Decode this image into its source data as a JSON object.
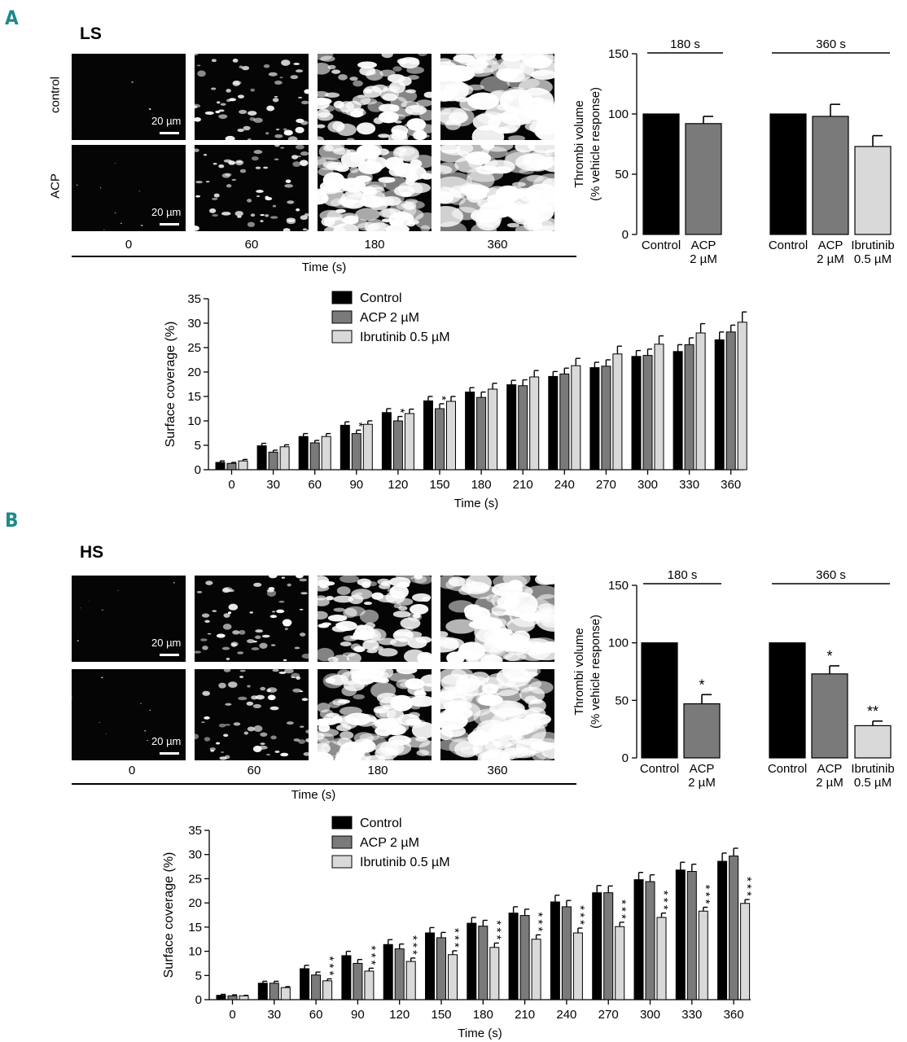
{
  "panels": [
    {
      "letter": "A",
      "condition": "LS",
      "row_labels": [
        "control",
        "ACP"
      ],
      "scale_label": "20 µm",
      "times": [
        "0",
        "60",
        "180",
        "360"
      ],
      "time_axis_label": "Time (s)"
    },
    {
      "letter": "B",
      "condition": "HS",
      "row_labels": [
        "",
        ""
      ],
      "scale_label": "20 µm",
      "times": [
        "0",
        "60",
        "180",
        "360"
      ],
      "time_axis_label": "Time (s)"
    }
  ],
  "colors": {
    "control": "#000000",
    "acp": "#7a7a7a",
    "ibrutinib": "#d9d9d9"
  },
  "chart_data": [
    {
      "type": "bar",
      "panel": "A",
      "ylabel": "Thrombi volume (% vehicle response)",
      "ylabel_lines": [
        "Thrombi volume",
        "(% vehicle response)"
      ],
      "ylim": [
        0,
        150
      ],
      "yticks": [
        0,
        50,
        100,
        150
      ],
      "groups": [
        {
          "label": "180 s",
          "bars": [
            {
              "label_lines": [
                "Control"
              ],
              "value": 100,
              "err": 0,
              "color": "control",
              "sig": ""
            },
            {
              "label_lines": [
                "ACP",
                "2 µM"
              ],
              "value": 92,
              "err": 6,
              "color": "acp",
              "sig": ""
            }
          ]
        },
        {
          "label": "360 s",
          "bars": [
            {
              "label_lines": [
                "Control"
              ],
              "value": 100,
              "err": 0,
              "color": "control",
              "sig": ""
            },
            {
              "label_lines": [
                "ACP",
                "2 µM"
              ],
              "value": 98,
              "err": 10,
              "color": "acp",
              "sig": ""
            },
            {
              "label_lines": [
                "Ibrutinib",
                "0.5 µM"
              ],
              "value": 73,
              "err": 9,
              "color": "ibrutinib",
              "sig": ""
            }
          ]
        }
      ]
    },
    {
      "type": "bar",
      "panel": "A",
      "xlabel": "Time (s)",
      "ylabel": "Surface coverage (%)",
      "ylim": [
        0,
        35
      ],
      "yticks": [
        0,
        5,
        10,
        15,
        20,
        25,
        30,
        35
      ],
      "categories": [
        "0",
        "30",
        "60",
        "90",
        "120",
        "150",
        "180",
        "210",
        "240",
        "270",
        "300",
        "330",
        "360"
      ],
      "series": [
        {
          "name": "Control",
          "color": "control",
          "values": [
            1.5,
            4.9,
            6.8,
            9.1,
            11.7,
            14.1,
            15.9,
            17.4,
            19.1,
            20.9,
            23.2,
            24.2,
            26.6
          ],
          "errors": [
            0.3,
            0.5,
            0.6,
            0.7,
            0.8,
            0.9,
            0.9,
            0.9,
            1.0,
            1.1,
            1.2,
            1.4,
            1.6
          ],
          "sig": [
            "",
            "",
            "",
            "",
            "",
            "",
            "",
            "",
            "",
            "",
            "",
            "",
            ""
          ]
        },
        {
          "name": "ACP 2 µM",
          "color": "acp",
          "values": [
            1.3,
            3.6,
            5.5,
            7.4,
            10.0,
            12.5,
            14.8,
            17.2,
            19.6,
            21.2,
            23.4,
            25.6,
            28.2
          ],
          "errors": [
            0.2,
            0.4,
            0.5,
            0.7,
            0.9,
            1.0,
            1.1,
            1.2,
            1.2,
            1.3,
            1.3,
            1.4,
            1.4
          ],
          "sig": [
            "",
            "",
            "",
            "*",
            "*",
            "*",
            "",
            "",
            "",
            "",
            "",
            "",
            ""
          ]
        },
        {
          "name": "Ibrutinib 0.5 µM",
          "color": "ibrutinib",
          "values": [
            1.8,
            4.7,
            6.8,
            9.3,
            11.5,
            14.0,
            16.5,
            19.0,
            21.3,
            23.7,
            25.7,
            28.0,
            30.2
          ],
          "errors": [
            0.3,
            0.4,
            0.6,
            0.7,
            0.9,
            1.0,
            1.2,
            1.3,
            1.5,
            1.6,
            1.7,
            1.9,
            2.1
          ],
          "sig": [
            "",
            "",
            "",
            "",
            "",
            "",
            "",
            "",
            "",
            "",
            "",
            "",
            ""
          ]
        }
      ]
    },
    {
      "type": "bar",
      "panel": "B",
      "ylabel": "Thrombi volume (% vehicle response)",
      "ylabel_lines": [
        "Thrombi volume",
        "(% vehicle response)"
      ],
      "ylim": [
        0,
        150
      ],
      "yticks": [
        0,
        50,
        100,
        150
      ],
      "groups": [
        {
          "label": "180 s",
          "bars": [
            {
              "label_lines": [
                "Control"
              ],
              "value": 100,
              "err": 0,
              "color": "control",
              "sig": ""
            },
            {
              "label_lines": [
                "ACP",
                "2 µM"
              ],
              "value": 47,
              "err": 8,
              "color": "acp",
              "sig": "*"
            }
          ]
        },
        {
          "label": "360 s",
          "bars": [
            {
              "label_lines": [
                "Control"
              ],
              "value": 100,
              "err": 0,
              "color": "control",
              "sig": ""
            },
            {
              "label_lines": [
                "ACP",
                "2 µM"
              ],
              "value": 73,
              "err": 7,
              "color": "acp",
              "sig": "*"
            },
            {
              "label_lines": [
                "Ibrutinib",
                "0.5 µM"
              ],
              "value": 28,
              "err": 4,
              "color": "ibrutinib",
              "sig": "**"
            }
          ]
        }
      ]
    },
    {
      "type": "bar",
      "panel": "B",
      "xlabel": "Time (s)",
      "ylabel": "Surface coverage (%)",
      "ylim": [
        0,
        35
      ],
      "yticks": [
        0,
        5,
        10,
        15,
        20,
        25,
        30,
        35
      ],
      "categories": [
        "0",
        "30",
        "60",
        "90",
        "120",
        "150",
        "180",
        "210",
        "240",
        "270",
        "300",
        "330",
        "360"
      ],
      "series": [
        {
          "name": "Control",
          "color": "control",
          "values": [
            0.9,
            3.4,
            6.4,
            9.1,
            11.4,
            13.8,
            15.8,
            17.9,
            20.2,
            22.1,
            24.8,
            26.8,
            28.6
          ],
          "errors": [
            0.2,
            0.4,
            0.7,
            0.9,
            1.0,
            1.1,
            1.2,
            1.3,
            1.4,
            1.5,
            1.5,
            1.6,
            1.7
          ],
          "sig": [
            "",
            "",
            "",
            "",
            "",
            "",
            "",
            "",
            "",
            "",
            "",
            "",
            ""
          ]
        },
        {
          "name": "ACP 2 µM",
          "color": "acp",
          "values": [
            0.8,
            3.4,
            5.1,
            7.5,
            10.5,
            12.8,
            15.2,
            17.4,
            19.2,
            22.1,
            24.4,
            26.5,
            29.7
          ],
          "errors": [
            0.2,
            0.4,
            0.6,
            0.8,
            1.0,
            1.1,
            1.2,
            1.3,
            1.3,
            1.4,
            1.4,
            1.5,
            1.6
          ],
          "sig": [
            "",
            "",
            "",
            "",
            "",
            "",
            "",
            "",
            "",
            "",
            "",
            "",
            ""
          ]
        },
        {
          "name": "Ibrutinib 0.5 µM",
          "color": "ibrutinib",
          "values": [
            0.8,
            2.5,
            3.9,
            5.9,
            7.9,
            9.3,
            10.8,
            12.5,
            13.8,
            15.1,
            17.0,
            18.3,
            19.9
          ],
          "errors": [
            0.1,
            0.2,
            0.4,
            0.6,
            0.7,
            0.8,
            0.9,
            0.9,
            1.0,
            0.9,
            0.9,
            0.8,
            0.8
          ],
          "sig": [
            "",
            "",
            "***",
            "***",
            "***",
            "***",
            "***",
            "***",
            "***",
            "***",
            "***",
            "***",
            "***"
          ]
        }
      ]
    }
  ]
}
